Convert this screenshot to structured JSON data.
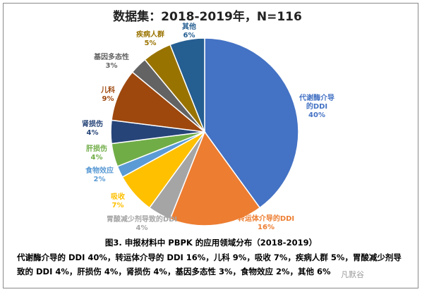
{
  "chart_data": {
    "type": "pie",
    "title": "数据集：2018-2019年，N=116",
    "slices": [
      {
        "label": "代谢酶介导的DDI",
        "percent_label": "40%",
        "value": 40,
        "color": "#4472C4"
      },
      {
        "label": "转运体介导的DDI",
        "percent_label": "16%",
        "value": 16,
        "color": "#ED7D31"
      },
      {
        "label": "胃酸减少剂导致的DDI",
        "percent_label": "4%",
        "value": 4,
        "color": "#A5A5A5"
      },
      {
        "label": "吸收",
        "percent_label": "7%",
        "value": 7,
        "color": "#FFC000"
      },
      {
        "label": "食物效应",
        "percent_label": "2%",
        "value": 2,
        "color": "#5B9BD5"
      },
      {
        "label": "肝损伤",
        "percent_label": "4%",
        "value": 4,
        "color": "#70AD47"
      },
      {
        "label": "肾损伤",
        "percent_label": "4%",
        "value": 4,
        "color": "#264478"
      },
      {
        "label": "儿科",
        "percent_label": "9%",
        "value": 9,
        "color": "#9E480E"
      },
      {
        "label": "基因多态性",
        "percent_label": "3%",
        "value": 3,
        "color": "#636363"
      },
      {
        "label": "疾病人群",
        "percent_label": "5%",
        "value": 5,
        "color": "#997300"
      },
      {
        "label": "其他",
        "percent_label": "6%",
        "value": 6,
        "color": "#255E91"
      }
    ]
  },
  "caption": "图3. 申报材料中 PBPK 的应用领域分布（2018-2019）",
  "description": "代谢酶介导的 DDI 40%，转运体介导的 DDI 16%，儿科 9%，吸收 7%，疾病人群 5%，胃酸减少剂导致的 DDI 4%，肝损伤 4%，肾损伤 4%，基因多态性 3%，食物效应 2%，其他 6%",
  "watermark": "凡默谷"
}
